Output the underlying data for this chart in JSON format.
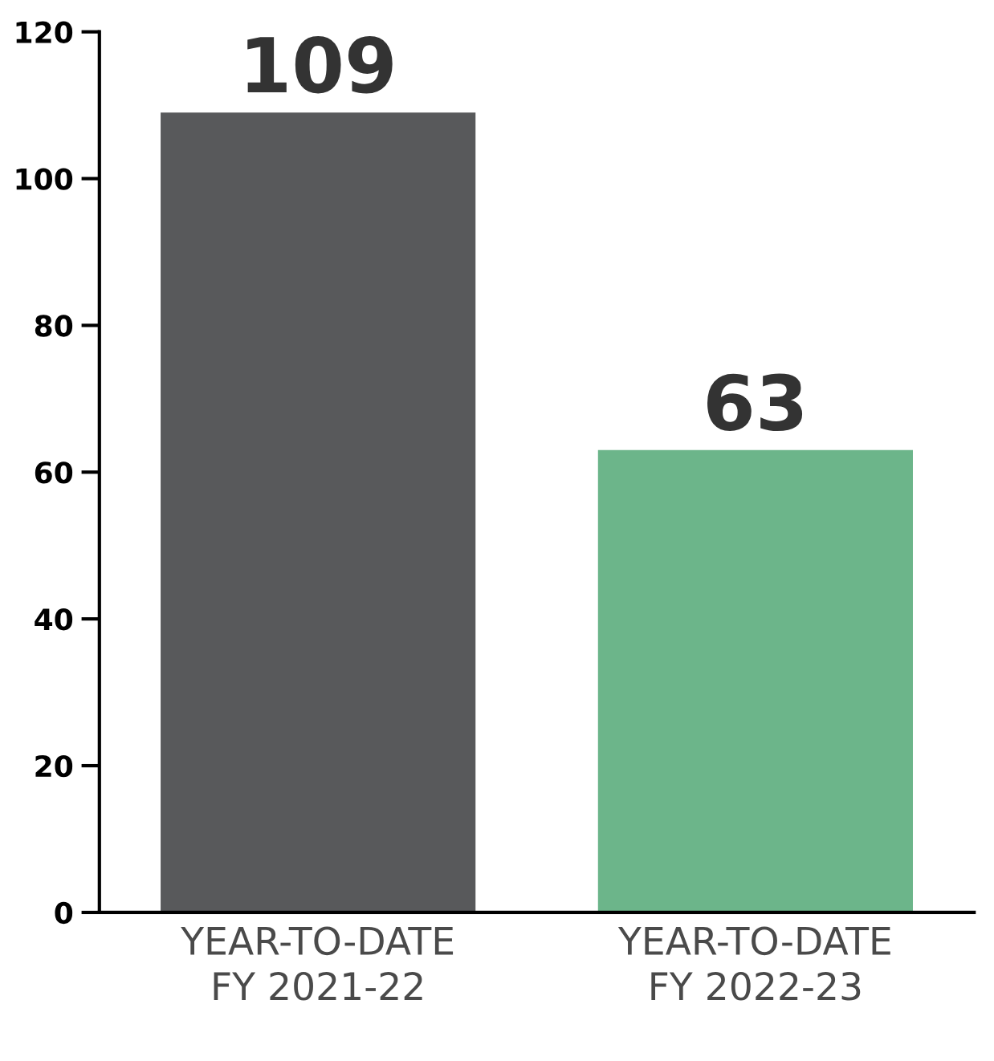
{
  "chart_data": {
    "type": "bar",
    "categories": [
      "YEAR-TO-DATE\nFY 2021-22",
      "YEAR-TO-DATE\nFY 2022-23"
    ],
    "values": [
      109,
      63
    ],
    "colors": [
      "#58595b",
      "#6cb58a"
    ],
    "ylim": [
      0,
      120
    ],
    "yticks": [
      0,
      20,
      40,
      60,
      80,
      100,
      120
    ],
    "data_labels": true,
    "grid": false,
    "legend": false
  }
}
